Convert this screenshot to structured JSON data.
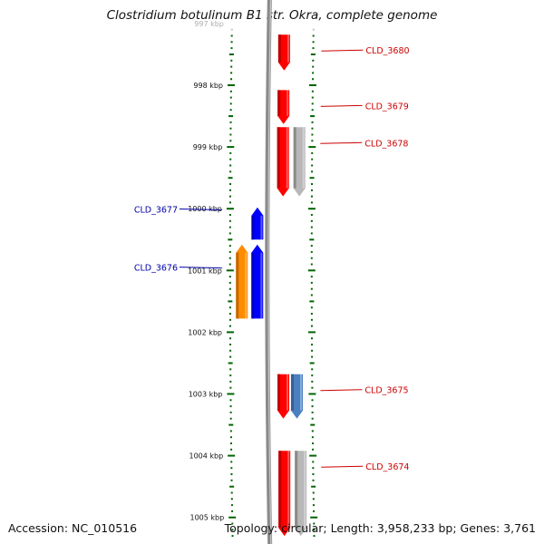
{
  "title": "Clostridium botulinum B1 str. Okra, complete genome",
  "footer": {
    "accession": "Accession: NC_010516",
    "summary": "Topology: circular; Length: 3,958,233 bp; Genes: 3,761"
  },
  "axis": {
    "ticks": [
      {
        "label": "997 kbp",
        "pos": 997,
        "faded": true
      },
      {
        "label": "998 kbp",
        "pos": 998
      },
      {
        "label": "999 kbp",
        "pos": 999
      },
      {
        "label": "1000 kbp",
        "pos": 1000
      },
      {
        "label": "1001 kbp",
        "pos": 1001
      },
      {
        "label": "1002 kbp",
        "pos": 1002
      },
      {
        "label": "1003 kbp",
        "pos": 1003
      },
      {
        "label": "1004 kbp",
        "pos": 1004
      },
      {
        "label": "1005 kbp",
        "pos": 1005
      }
    ]
  },
  "colors": {
    "forward": "#0000ff",
    "reverse": "#ff0000",
    "orange": "#ff8c00",
    "gray": "#b8b8b8",
    "steel": "#4a7fc1",
    "tick": "#006400",
    "backbone": "#8a8a8a"
  },
  "features": [
    {
      "name": "CLD_3680",
      "label": "CLD_3680",
      "strand": "reverse",
      "start": 997.76,
      "end": 997.18,
      "color": "reverse"
    },
    {
      "name": "CLD_3679",
      "label": "CLD_3679",
      "strand": "reverse",
      "start": 998.63,
      "end": 998.08,
      "color": "reverse"
    },
    {
      "name": "CLD_3678",
      "label": "CLD_3678",
      "strand": "reverse",
      "start": 999.8,
      "end": 998.68,
      "color": "reverse"
    },
    {
      "name": "gray-a",
      "label": "",
      "strand": "reverse",
      "start": 999.8,
      "end": 998.68,
      "color": "gray"
    },
    {
      "name": "CLD_3677",
      "label": "CLD_3677",
      "strand": "forward",
      "start": 999.98,
      "end": 1000.5,
      "color": "forward"
    },
    {
      "name": "CLD_3676",
      "label": "CLD_3676",
      "strand": "forward",
      "start": 1000.58,
      "end": 1001.78,
      "color": "forward"
    },
    {
      "name": "orange-b",
      "label": "",
      "strand": "forward",
      "start": 1000.58,
      "end": 1001.78,
      "color": "orange"
    },
    {
      "name": "CLD_3675",
      "label": "CLD_3675",
      "strand": "reverse",
      "start": 1003.4,
      "end": 1002.68,
      "color": "reverse"
    },
    {
      "name": "steel-a",
      "label": "",
      "strand": "reverse",
      "start": 1003.4,
      "end": 1002.68,
      "color": "steel"
    },
    {
      "name": "CLD_3674",
      "label": "CLD_3674",
      "strand": "reverse",
      "start": 1005.3,
      "end": 1003.92,
      "color": "reverse"
    },
    {
      "name": "gray-b",
      "label": "",
      "strand": "reverse",
      "start": 1005.3,
      "end": 1003.92,
      "color": "gray"
    }
  ]
}
